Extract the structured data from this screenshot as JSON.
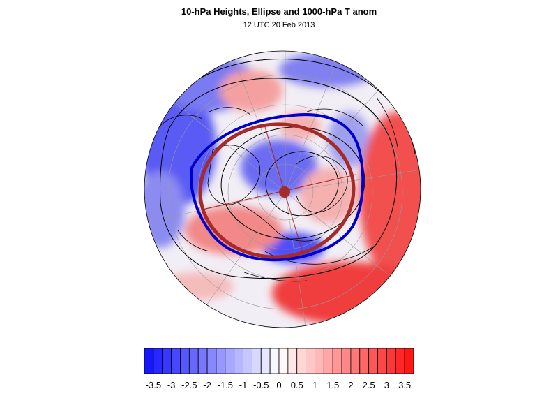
{
  "figure": {
    "title": "10-hPa Heights, Ellipse and 1000-hPa T anom",
    "subtitle": "12 UTC 20 Feb 2013"
  },
  "colors": {
    "negative_max": "#1010ff",
    "positive_max": "#ff1010",
    "ellipse": "#a52a2a",
    "height_contour_bold": "#0000cc",
    "contour": "#000000",
    "graticule": "#9a9a9a"
  },
  "colorbar": {
    "levels": [
      -3.75,
      -3.5,
      -3.25,
      -3,
      -2.75,
      -2.5,
      -2.25,
      -2,
      -1.75,
      -1.5,
      -1.25,
      -1,
      -0.75,
      -0.5,
      -0.25,
      0,
      0.25,
      0.5,
      0.75,
      1,
      1.25,
      1.5,
      1.75,
      2,
      2.25,
      2.5,
      2.75,
      3,
      3.25,
      3.5,
      3.75
    ],
    "tick_labels": [
      "-3.5",
      "-3",
      "-2.5",
      "-2",
      "-1.5",
      "-1",
      "-0.5",
      "0",
      "0.5",
      "1",
      "1.5",
      "2",
      "2.5",
      "3",
      "3.5"
    ]
  }
}
